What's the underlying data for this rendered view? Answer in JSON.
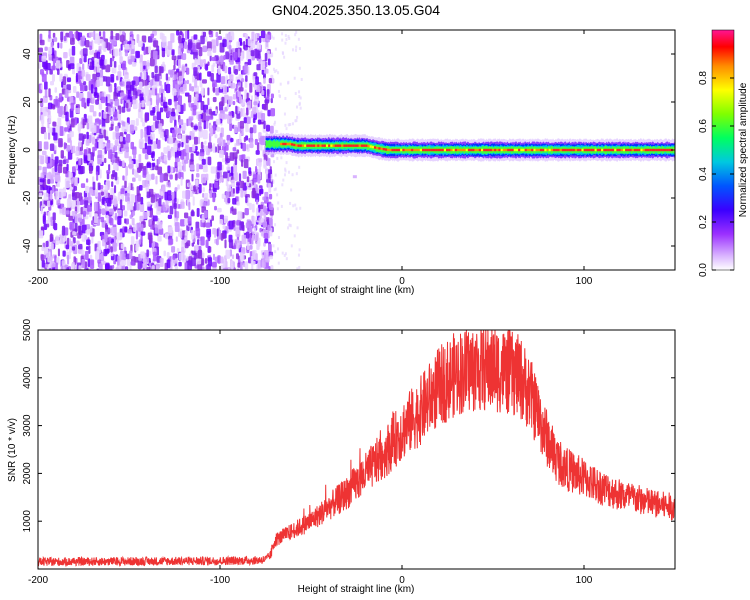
{
  "title": "GN04.2025.350.13.05.G04",
  "chart_data": [
    {
      "type": "heatmap",
      "title": "GN04.2025.350.13.05.G04",
      "xlabel": "Height of straight line (km)",
      "ylabel": "Frequency (Hz)",
      "xlim": [
        -200,
        150
      ],
      "ylim": [
        -50,
        50
      ],
      "x_ticks": [
        -200,
        -100,
        0,
        100
      ],
      "x_tick_labels": [
        "-200",
        "-100",
        "0",
        "100"
      ],
      "y_ticks": [
        -40,
        -20,
        0,
        20,
        40
      ],
      "y_tick_labels": [
        "-40",
        "-20",
        "0",
        "20",
        "40"
      ],
      "noise_region_x": [
        -200,
        -72
      ],
      "signal_ridge": {
        "x_start": -75,
        "x_end": 150,
        "frequency_hz": [
          {
            "x": -75,
            "y": 2.5
          },
          {
            "x": -62,
            "y": 2.5
          },
          {
            "x": -58,
            "y": 1.8
          },
          {
            "x": -20,
            "y": 1.8
          },
          {
            "x": -14,
            "y": 0.8
          },
          {
            "x": -8,
            "y": 0.0
          },
          {
            "x": 150,
            "y": 0.0
          }
        ]
      },
      "colorbar": {
        "label": "Normalized spectral amplitude",
        "range": [
          0,
          1
        ],
        "ticks": [
          0.0,
          0.2,
          0.4,
          0.6,
          0.8
        ],
        "tick_labels": [
          "0.0",
          "0.2",
          "0.4",
          "0.6",
          "0.8"
        ],
        "colors": [
          "#ffffff",
          "#d9b3ff",
          "#9b30ff",
          "#5a00ff",
          "#0000ff",
          "#0096ff",
          "#00e5e5",
          "#00ff60",
          "#80ff00",
          "#ffff00",
          "#ff8c00",
          "#ff0000",
          "#ff1493"
        ]
      }
    },
    {
      "type": "line",
      "xlabel": "Height of straight line (km)",
      "ylabel": "SNR (10 * v/v)",
      "xlim": [
        -200,
        150
      ],
      "ylim": [
        0,
        5000
      ],
      "x_ticks": [
        -200,
        -100,
        0,
        100
      ],
      "x_tick_labels": [
        "-200",
        "-100",
        "0",
        "100"
      ],
      "y_ticks": [
        1000,
        2000,
        3000,
        4000,
        5000
      ],
      "y_tick_labels": [
        "1000",
        "2000",
        "3000",
        "4000",
        "5000"
      ],
      "color": "#ee3333",
      "series": [
        {
          "name": "SNR",
          "x": [
            -200,
            -150,
            -100,
            -80,
            -75,
            -72,
            -70,
            -65,
            -60,
            -50,
            -40,
            -30,
            -20,
            -10,
            0,
            10,
            20,
            30,
            40,
            50,
            60,
            65,
            70,
            75,
            80,
            85,
            90,
            100,
            110,
            120,
            130,
            140,
            150
          ],
          "y": [
            150,
            160,
            170,
            180,
            200,
            300,
            600,
            700,
            800,
            1000,
            1300,
            1600,
            2000,
            2400,
            2900,
            3300,
            3800,
            4100,
            4200,
            4200,
            4100,
            4000,
            3700,
            3200,
            2700,
            2300,
            2100,
            1900,
            1700,
            1550,
            1450,
            1350,
            1300
          ]
        }
      ]
    }
  ]
}
